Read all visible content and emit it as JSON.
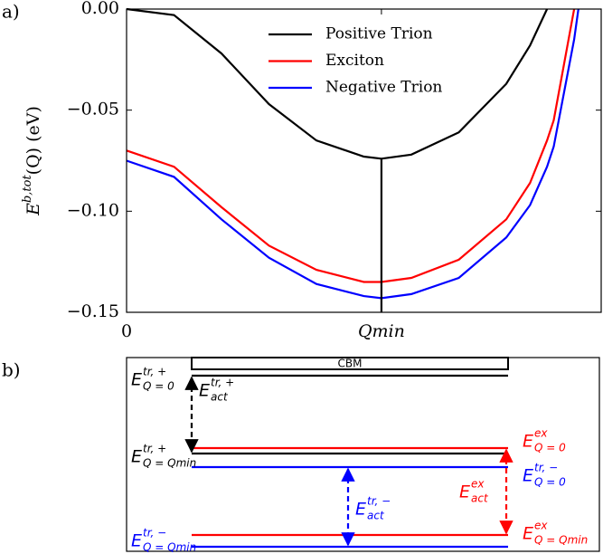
{
  "chart_data": {
    "type": "line",
    "panel_label": "a)",
    "ylabel": {
      "base": "E",
      "sup": "b,tot",
      "rest": "(Q) (eV)"
    },
    "x": [
      0,
      0.1,
      0.2,
      0.3,
      0.4,
      0.5,
      0.537,
      0.6,
      0.7,
      0.8,
      0.85,
      0.886,
      0.9,
      0.943,
      0.952
    ],
    "series": [
      {
        "name": "Positive Trion",
        "color": "#000000",
        "values": [
          0,
          -0.003,
          -0.022,
          -0.047,
          -0.065,
          -0.073,
          -0.074,
          -0.072,
          -0.061,
          -0.037,
          -0.018,
          0,
          null,
          null,
          null
        ]
      },
      {
        "name": "Exciton",
        "color": "#ff0000",
        "values": [
          -0.07,
          -0.078,
          -0.098,
          -0.117,
          -0.129,
          -0.135,
          -0.135,
          -0.133,
          -0.124,
          -0.104,
          -0.086,
          -0.065,
          -0.055,
          0,
          null
        ]
      },
      {
        "name": "Negative Trion",
        "color": "#0000ff",
        "values": [
          -0.075,
          -0.083,
          -0.104,
          -0.123,
          -0.136,
          -0.142,
          -0.143,
          -0.141,
          -0.133,
          -0.113,
          -0.097,
          -0.078,
          -0.068,
          -0.015,
          0
        ]
      }
    ],
    "xlim": [
      0,
      1
    ],
    "xticks": [
      0,
      {
        "value": 0.537,
        "label": "Qmin"
      }
    ],
    "ylim": [
      -0.15,
      0
    ],
    "yticks": [
      {
        "value": 0,
        "label": "0.00"
      },
      {
        "value": -0.05,
        "label": "−0.05"
      },
      {
        "value": -0.1,
        "label": "−0.10"
      },
      {
        "value": -0.15,
        "label": "−0.15"
      }
    ],
    "legend": "upper center"
  },
  "diagram": {
    "panel_label": "b)",
    "cbm": "CBM",
    "labels": [
      {
        "base": "E",
        "sup": "tr, +",
        "sub": "Q = 0"
      },
      {
        "base": "E",
        "sup": "tr, +",
        "sub": "act"
      },
      {
        "base": "E",
        "sup": "tr, +",
        "sub": "Q = Qmin"
      },
      {
        "base": "E",
        "sup": "ex",
        "sub": "Q = 0"
      },
      {
        "base": "E",
        "sup": "tr, −",
        "sub": "Q = 0"
      },
      {
        "base": "E",
        "sup": "ex",
        "sub": "act"
      },
      {
        "base": "E",
        "sup": "tr, −",
        "sub": "act"
      },
      {
        "base": "E",
        "sup": "ex",
        "sub": "Q = Qmin"
      },
      {
        "base": "E",
        "sup": "tr, −",
        "sub": "Q = Qmin"
      }
    ]
  }
}
